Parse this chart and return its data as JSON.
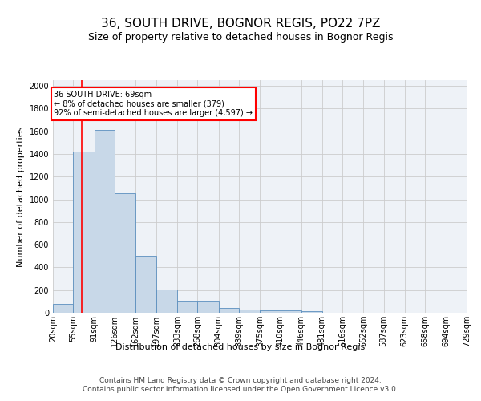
{
  "title1": "36, SOUTH DRIVE, BOGNOR REGIS, PO22 7PZ",
  "title2": "Size of property relative to detached houses in Bognor Regis",
  "xlabel": "Distribution of detached houses by size in Bognor Regis",
  "ylabel": "Number of detached properties",
  "bar_edges": [
    20,
    55,
    91,
    126,
    162,
    197,
    233,
    268,
    304,
    339,
    375,
    410,
    446,
    481,
    516,
    552,
    587,
    623,
    658,
    694,
    729
  ],
  "bar_heights": [
    80,
    1420,
    1610,
    1050,
    500,
    205,
    105,
    105,
    40,
    30,
    22,
    20,
    15,
    0,
    0,
    0,
    0,
    0,
    0,
    0
  ],
  "bar_color": "#c8d8e8",
  "bar_edgecolor": "#5b8fbe",
  "grid_color": "#cccccc",
  "bg_color": "#eef2f7",
  "red_line_x": 69,
  "annotation_text": "36 SOUTH DRIVE: 69sqm\n← 8% of detached houses are smaller (379)\n92% of semi-detached houses are larger (4,597) →",
  "annotation_box_color": "white",
  "annotation_box_edgecolor": "red",
  "tick_labels": [
    "20sqm",
    "55sqm",
    "91sqm",
    "126sqm",
    "162sqm",
    "197sqm",
    "233sqm",
    "268sqm",
    "304sqm",
    "339sqm",
    "375sqm",
    "410sqm",
    "446sqm",
    "481sqm",
    "516sqm",
    "552sqm",
    "587sqm",
    "623sqm",
    "658sqm",
    "694sqm",
    "729sqm"
  ],
  "ylim": [
    0,
    2050
  ],
  "yticks": [
    0,
    200,
    400,
    600,
    800,
    1000,
    1200,
    1400,
    1600,
    1800,
    2000
  ],
  "footer": "Contains HM Land Registry data © Crown copyright and database right 2024.\nContains public sector information licensed under the Open Government Licence v3.0.",
  "title1_fontsize": 11,
  "title2_fontsize": 9,
  "xlabel_fontsize": 8,
  "ylabel_fontsize": 8,
  "tick_fontsize": 7,
  "footer_fontsize": 6.5
}
